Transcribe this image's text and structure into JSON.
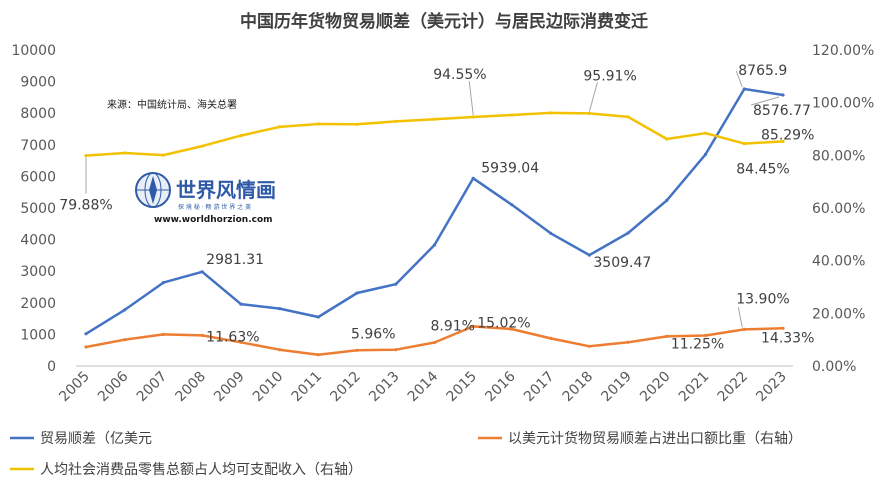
{
  "chart_data": {
    "type": "line",
    "title": "中国历年货物贸易顺差（美元计）与居民边际消费变迁",
    "source_note": "来源：中国统计局、海关总署",
    "categories": [
      "2005",
      "2006",
      "2007",
      "2008",
      "2009",
      "2010",
      "2011",
      "2012",
      "2013",
      "2014",
      "2015",
      "2016",
      "2017",
      "2018",
      "2019",
      "2020",
      "2021",
      "2022",
      "2023"
    ],
    "y_left": {
      "min": 0,
      "max": 10000,
      "ticks": [
        "0",
        "1000",
        "2000",
        "3000",
        "4000",
        "5000",
        "6000",
        "7000",
        "8000",
        "9000",
        "10000"
      ]
    },
    "y_right": {
      "min": 0,
      "max": 120,
      "ticks": [
        "0.00%",
        "20.00%",
        "40.00%",
        "60.00%",
        "80.00%",
        "100.00%",
        "120.00%"
      ]
    },
    "series": [
      {
        "name": "贸易顺差（亿美元",
        "axis": "left",
        "color": "#4472c4",
        "values": [
          1020,
          1775,
          2640,
          2981.31,
          1960,
          1815,
          1550,
          2310,
          2590,
          3830,
          5939.04,
          5100,
          4200,
          3509.47,
          4210,
          5240,
          6700,
          8765.9,
          8576.77
        ]
      },
      {
        "name": "以美元计货物贸易顺差占进出口额比重（右轴）",
        "axis": "right",
        "color": "#ed7d31",
        "values": [
          7.2,
          10.0,
          12.0,
          11.63,
          9.0,
          6.2,
          4.3,
          5.96,
          6.2,
          8.91,
          15.02,
          14.0,
          10.5,
          7.5,
          9.0,
          11.25,
          11.6,
          13.9,
          14.33
        ]
      },
      {
        "name": "人均社会消费品零售总额占人均可支配收入（右轴）",
        "axis": "right",
        "color": "#f2c200",
        "values": [
          79.88,
          80.9,
          80.1,
          83.5,
          87.5,
          90.8,
          91.9,
          91.8,
          92.9,
          93.7,
          94.55,
          95.3,
          96.1,
          95.91,
          94.6,
          86.2,
          88.4,
          84.45,
          85.29
        ]
      }
    ],
    "data_labels": [
      {
        "series": 0,
        "index": 3,
        "text": "2981.31"
      },
      {
        "series": 0,
        "index": 10,
        "text": "5939.04"
      },
      {
        "series": 0,
        "index": 13,
        "text": "3509.47"
      },
      {
        "series": 0,
        "index": 17,
        "text": "8765.9"
      },
      {
        "series": 0,
        "index": 18,
        "text": "8576.77"
      },
      {
        "series": 1,
        "index": 3,
        "text": "11.63%"
      },
      {
        "series": 1,
        "index": 7,
        "text": "5.96%"
      },
      {
        "series": 1,
        "index": 9,
        "text": "8.91%"
      },
      {
        "series": 1,
        "index": 10,
        "text": "15.02%"
      },
      {
        "series": 1,
        "index": 15,
        "text": "11.25%"
      },
      {
        "series": 1,
        "index": 17,
        "text": "13.90%"
      },
      {
        "series": 1,
        "index": 18,
        "text": "14.33%"
      },
      {
        "series": 2,
        "index": 0,
        "text": "79.88%"
      },
      {
        "series": 2,
        "index": 10,
        "text": "94.55%"
      },
      {
        "series": 2,
        "index": 13,
        "text": "95.91%"
      },
      {
        "series": 2,
        "index": 17,
        "text": "84.45%"
      },
      {
        "series": 2,
        "index": 18,
        "text": "85.29%"
      }
    ],
    "legend_position": "bottom",
    "grid": false
  },
  "watermark": {
    "title": "世界风情画",
    "subtitle": "探 境 秘 · 畅 游 世 界 之 美",
    "url": "www.worldhorzion.com",
    "logo_icon": "globe-compass-icon"
  }
}
